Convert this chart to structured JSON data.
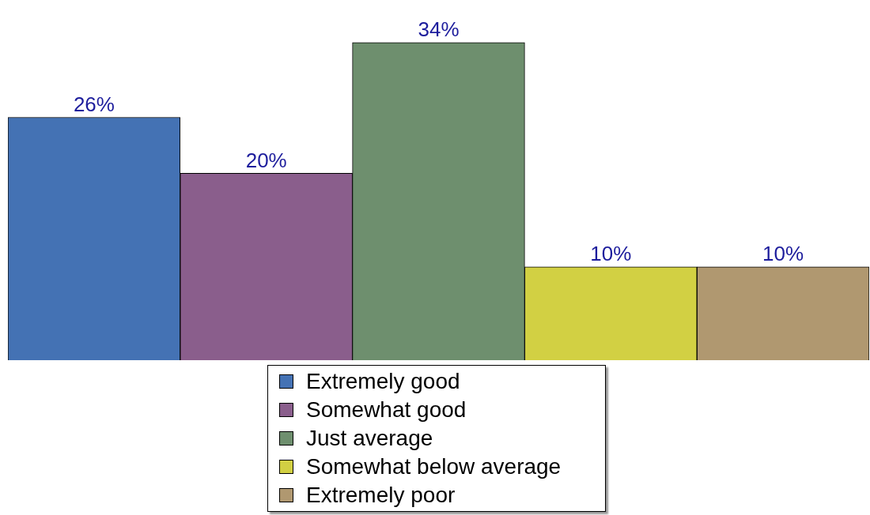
{
  "chart_data": {
    "type": "bar",
    "categories": [
      null
    ],
    "series": [
      {
        "name": "Extremely good",
        "color": "#4472b4",
        "values": [
          26
        ],
        "value_labels": [
          "26%"
        ]
      },
      {
        "name": "Somewhat good",
        "color": "#8a5e8c",
        "values": [
          20
        ],
        "value_labels": [
          "20%"
        ]
      },
      {
        "name": "Just average",
        "color": "#6e8f6e",
        "values": [
          34
        ],
        "value_labels": [
          "34%"
        ]
      },
      {
        "name": "Somewhat below average",
        "color": "#d2d043",
        "values": [
          10
        ],
        "value_labels": [
          "10%"
        ]
      },
      {
        "name": "Extremely poor",
        "color": "#b09870",
        "values": [
          10
        ],
        "value_labels": [
          "10%"
        ]
      }
    ],
    "legend": "bottom",
    "tick_labels": false,
    "grid": false
  }
}
